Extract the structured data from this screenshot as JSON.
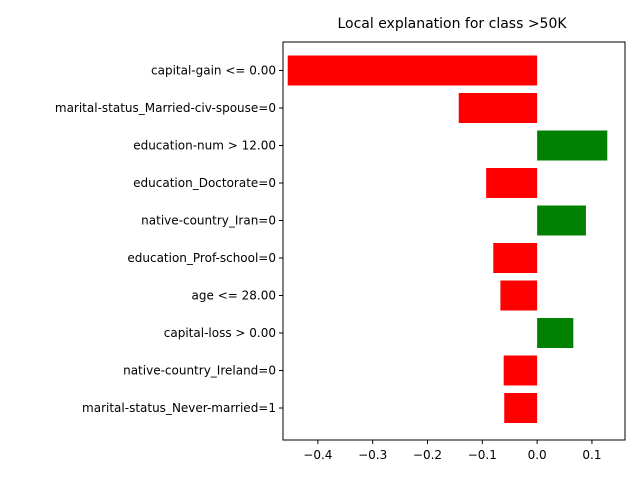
{
  "chart_data": {
    "type": "bar",
    "orientation": "horizontal",
    "title": "Local explanation for class >50K",
    "xlabel": "",
    "ylabel": "",
    "xlim": [
      -0.4636,
      0.1603
    ],
    "xticks": [
      -0.4,
      -0.3,
      -0.2,
      -0.1,
      0.0,
      0.1
    ],
    "xtick_labels": [
      "−0.4",
      "−0.3",
      "−0.2",
      "−0.1",
      "0.0",
      "0.1"
    ],
    "grid": false,
    "legend": false,
    "categories": [
      "capital-gain <= 0.00",
      "marital-status_Married-civ-spouse=0",
      "education-num > 12.00",
      "education_Doctorate=0",
      "native-country_Iran=0",
      "education_Prof-school=0",
      "age <= 28.00",
      "capital-loss > 0.00",
      "native-country_Ireland=0",
      "marital-status_Never-married=1"
    ],
    "values": [
      -0.455,
      -0.143,
      0.128,
      -0.093,
      0.089,
      -0.08,
      -0.067,
      0.066,
      -0.061,
      -0.06
    ],
    "colors": {
      "positive": "#008000",
      "negative": "#ff0000"
    }
  }
}
